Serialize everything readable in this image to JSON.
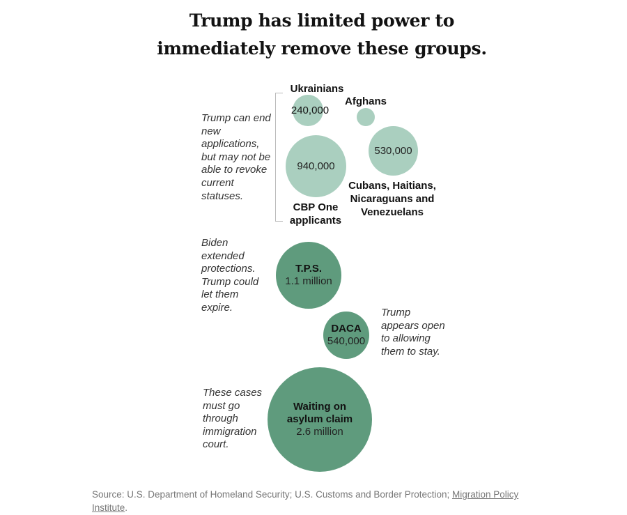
{
  "title_lines": [
    "Trump has limited power to",
    "immediately remove these groups."
  ],
  "notes": {
    "group1": "Trump can end new applications, but may not be able to revoke current statuses.",
    "group2": "Biden extended protections. Trump could let them expire.",
    "daca": "Trump appears open to allowing them to stay.",
    "asylum": "These cases must go through immigration court."
  },
  "colors": {
    "light": "#aacfbf",
    "dark": "#5f9b7d"
  },
  "chart_data": {
    "type": "bubble",
    "bubbles": [
      {
        "label": "Ukrainians",
        "value_text": "240,000",
        "value": 240000,
        "color": "light"
      },
      {
        "label": "Afghans",
        "value_text": "",
        "value": null,
        "color": "light"
      },
      {
        "label": "Cubans, Haitians, Nicaraguans and Venezuelans",
        "value_text": "530,000",
        "value": 530000,
        "color": "light"
      },
      {
        "label": "CBP One applicants",
        "value_text": "940,000",
        "value": 940000,
        "color": "light"
      },
      {
        "label": "T.P.S.",
        "value_text": "1.1 million",
        "value": 1100000,
        "color": "dark"
      },
      {
        "label": "DACA",
        "value_text": "540,000",
        "value": 540000,
        "color": "dark"
      },
      {
        "label": "Waiting on asylum claim",
        "value_text": "2.6 million",
        "value": 2600000,
        "color": "dark"
      }
    ]
  },
  "source": {
    "prefix": "Source: U.S. Department of Homeland Security; U.S. Customs and Border Protection; ",
    "link": "Migration Policy Institute",
    "suffix": "."
  }
}
